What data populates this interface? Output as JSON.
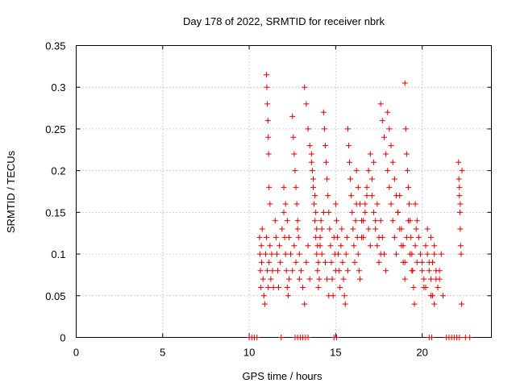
{
  "chart_data": {
    "type": "scatter",
    "title": "Day 178 of 2022, SRMTID for receiver nbrk",
    "xlabel": "GPS time / hours",
    "ylabel": "SRMTID / TECUs",
    "xlim": [
      0,
      24
    ],
    "ylim": [
      0,
      0.35
    ],
    "x_ticks": [
      0,
      5,
      10,
      15,
      20
    ],
    "x_tick_labels": [
      "0",
      "5",
      "10",
      "15",
      "20"
    ],
    "y_ticks": [
      0,
      0.05,
      0.1,
      0.15,
      0.2,
      0.25,
      0.3,
      0.35
    ],
    "y_tick_labels": [
      "0",
      "0.05",
      "0.1",
      "0.15",
      "0.2",
      "0.25",
      "0.3",
      "0.35"
    ],
    "grid": true,
    "marker": "+",
    "series": [
      {
        "name": "SRMTID",
        "color": "#e00000",
        "x": [
          10.0,
          10.15,
          10.3,
          10.45,
          11.85,
          12.65,
          12.8,
          12.95,
          13.1,
          13.25,
          13.4,
          14.9,
          15.05,
          20.4,
          20.55,
          21.4,
          21.55,
          21.7,
          21.85,
          22.0,
          22.15,
          22.5,
          22.75,
          10.6,
          10.62,
          10.65,
          10.68,
          10.7,
          10.72,
          10.75,
          10.8,
          10.85,
          10.9,
          10.95,
          11.0,
          11.05,
          11.1,
          11.15,
          11.2,
          11.25,
          11.3,
          11.35,
          11.4,
          11.0,
          11.02,
          11.05,
          11.08,
          11.1,
          11.12,
          11.15,
          11.2,
          11.5,
          11.55,
          11.6,
          11.65,
          11.7,
          11.75,
          11.8,
          11.9,
          12.0,
          12.05,
          12.1,
          12.15,
          12.2,
          12.25,
          12.3,
          12.0,
          12.1,
          12.2,
          12.3,
          12.4,
          12.5,
          12.6,
          12.7,
          12.8,
          12.9,
          12.5,
          12.55,
          12.6,
          12.65,
          12.7,
          12.75,
          12.8,
          12.85,
          12.9,
          13.0,
          13.1,
          13.2,
          13.3,
          13.4,
          13.5,
          13.2,
          13.3,
          13.4,
          13.5,
          13.6,
          13.7,
          13.8,
          13.85,
          13.9,
          13.95,
          14.0,
          14.05,
          14.1,
          14.15,
          14.2,
          13.6,
          13.65,
          13.7,
          13.75,
          13.8,
          13.85,
          13.9,
          13.95,
          14.0,
          14.1,
          14.2,
          14.3,
          14.4,
          14.5,
          14.6,
          14.3,
          14.35,
          14.4,
          14.45,
          14.5,
          14.55,
          14.6,
          14.65,
          14.7,
          14.75,
          14.8,
          14.85,
          14.9,
          14.95,
          15.0,
          15.0,
          15.05,
          15.1,
          15.15,
          15.2,
          15.25,
          15.3,
          15.35,
          15.4,
          15.45,
          15.5,
          15.55,
          15.6,
          15.65,
          15.7,
          15.7,
          15.75,
          15.8,
          15.85,
          15.9,
          15.95,
          16.0,
          16.05,
          16.1,
          16.15,
          16.2,
          16.25,
          16.3,
          16.35,
          16.4,
          16.2,
          16.3,
          16.4,
          16.5,
          16.6,
          16.7,
          16.8,
          16.9,
          17.0,
          17.1,
          17.2,
          17.3,
          17.4,
          17.5,
          17.6,
          16.5,
          16.6,
          16.7,
          16.8,
          16.9,
          17.0,
          17.1,
          17.2,
          17.3,
          17.4,
          17.5,
          17.6,
          17.7,
          17.8,
          17.9,
          17.6,
          17.7,
          17.8,
          17.9,
          18.0,
          18.1,
          18.2,
          18.3,
          18.4,
          18.5,
          18.6,
          18.7,
          18.8,
          18.9,
          19.0,
          18.0,
          18.1,
          18.2,
          18.3,
          18.4,
          18.5,
          18.6,
          18.7,
          18.8,
          18.9,
          19.0,
          19.1,
          19.2,
          19.3,
          19.4,
          19.0,
          19.05,
          19.1,
          19.15,
          19.2,
          19.25,
          19.3,
          19.35,
          19.4,
          19.45,
          19.5,
          19.55,
          19.6,
          19.65,
          19.7,
          19.6,
          19.7,
          19.8,
          19.9,
          20.0,
          20.1,
          20.2,
          20.3,
          20.4,
          20.5,
          20.6,
          20.7,
          20.8,
          20.9,
          21.0,
          20.0,
          20.1,
          20.2,
          20.3,
          20.4,
          20.5,
          20.6,
          20.7,
          20.8,
          20.9,
          21.0,
          21.1,
          21.2,
          20.5,
          20.7,
          22.1,
          22.12,
          22.15,
          22.18,
          22.2,
          22.22,
          22.25,
          22.28,
          22.3,
          22.15,
          22.2
        ],
        "y": [
          0,
          0,
          0,
          0,
          0,
          0,
          0,
          0,
          0,
          0,
          0,
          0,
          0,
          0,
          0,
          0,
          0,
          0,
          0,
          0,
          0,
          0,
          0,
          0.12,
          0.1,
          0.08,
          0.06,
          0.11,
          0.09,
          0.13,
          0.07,
          0.05,
          0.04,
          0.1,
          0.12,
          0.08,
          0.06,
          0.09,
          0.11,
          0.07,
          0.1,
          0.08,
          0.06,
          0.315,
          0.3,
          0.28,
          0.26,
          0.24,
          0.22,
          0.18,
          0.16,
          0.14,
          0.12,
          0.1,
          0.08,
          0.06,
          0.11,
          0.09,
          0.13,
          0.15,
          0.12,
          0.1,
          0.08,
          0.06,
          0.05,
          0.07,
          0.18,
          0.16,
          0.14,
          0.12,
          0.1,
          0.08,
          0.11,
          0.09,
          0.13,
          0.07,
          0.265,
          0.24,
          0.22,
          0.2,
          0.18,
          0.16,
          0.14,
          0.12,
          0.1,
          0.08,
          0.06,
          0.04,
          0.09,
          0.11,
          0.07,
          0.3,
          0.28,
          0.25,
          0.23,
          0.21,
          0.19,
          0.17,
          0.15,
          0.13,
          0.11,
          0.09,
          0.07,
          0.12,
          0.14,
          0.1,
          0.22,
          0.2,
          0.18,
          0.16,
          0.14,
          0.12,
          0.1,
          0.08,
          0.06,
          0.11,
          0.13,
          0.15,
          0.09,
          0.07,
          0.05,
          0.27,
          0.25,
          0.23,
          0.21,
          0.19,
          0.17,
          0.15,
          0.13,
          0.11,
          0.09,
          0.07,
          0.05,
          0.12,
          0.1,
          0.08,
          0.16,
          0.14,
          0.12,
          0.1,
          0.08,
          0.06,
          0.11,
          0.13,
          0.09,
          0.07,
          0.05,
          0.04,
          0.1,
          0.12,
          0.08,
          0.25,
          0.23,
          0.21,
          0.19,
          0.17,
          0.15,
          0.13,
          0.11,
          0.09,
          0.14,
          0.16,
          0.12,
          0.1,
          0.08,
          0.07,
          0.2,
          0.18,
          0.16,
          0.14,
          0.12,
          0.15,
          0.17,
          0.13,
          0.11,
          0.19,
          0.21,
          0.14,
          0.16,
          0.12,
          0.1,
          0.12,
          0.14,
          0.16,
          0.18,
          0.2,
          0.22,
          0.17,
          0.15,
          0.13,
          0.11,
          0.09,
          0.14,
          0.12,
          0.1,
          0.08,
          0.28,
          0.26,
          0.24,
          0.22,
          0.2,
          0.18,
          0.16,
          0.14,
          0.12,
          0.1,
          0.15,
          0.17,
          0.13,
          0.11,
          0.09,
          0.27,
          0.25,
          0.23,
          0.21,
          0.19,
          0.17,
          0.15,
          0.13,
          0.11,
          0.09,
          0.07,
          0.12,
          0.14,
          0.1,
          0.08,
          0.305,
          0.25,
          0.22,
          0.2,
          0.18,
          0.16,
          0.14,
          0.12,
          0.1,
          0.08,
          0.06,
          0.04,
          0.11,
          0.13,
          0.09,
          0.16,
          0.14,
          0.12,
          0.1,
          0.08,
          0.06,
          0.11,
          0.13,
          0.09,
          0.07,
          0.05,
          0.1,
          0.08,
          0.06,
          0.07,
          0.09,
          0.07,
          0.06,
          0.1,
          0.08,
          0.05,
          0.09,
          0.11,
          0.07,
          0.06,
          0.08,
          0.1,
          0.05,
          0.12,
          0.04,
          0.21,
          0.19,
          0.17,
          0.15,
          0.13,
          0.11,
          0.1,
          0.04,
          0.2,
          0.18,
          0.16
        ]
      }
    ]
  }
}
